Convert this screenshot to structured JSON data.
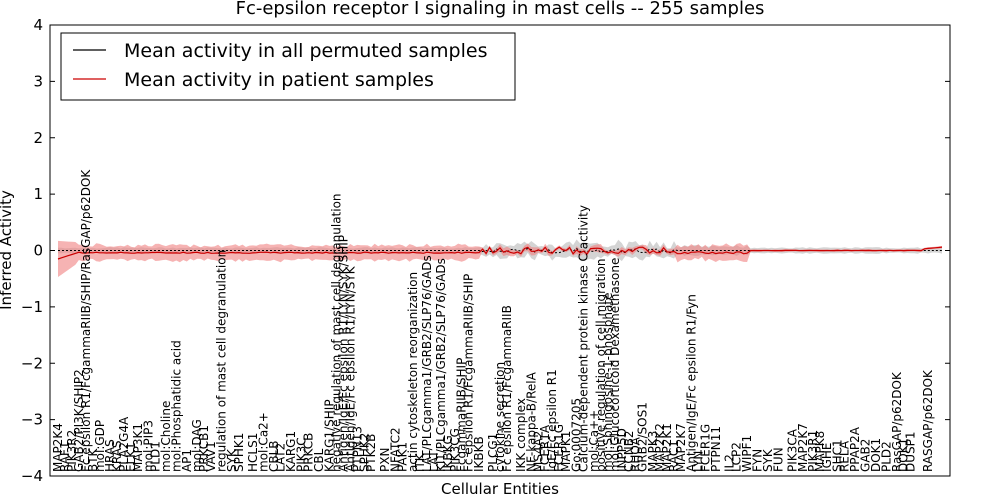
{
  "chart_data": {
    "type": "line",
    "title": "Fc-epsilon receptor I signaling in mast cells -- 255 samples",
    "xlabel": "Cellular Entities",
    "ylabel": "Inferred Activity",
    "ylim": [
      -4,
      4
    ],
    "yticks": [
      -4,
      -3,
      -2,
      -1,
      0,
      1,
      2,
      3,
      4
    ],
    "x_count": 255,
    "grid": false,
    "legend_position": "top-left",
    "legend": [
      {
        "label": "Mean activity in all permuted samples",
        "color": "#000000"
      },
      {
        "label": "Mean activity in patient samples",
        "color": "#cc0000"
      }
    ],
    "colors": {
      "permuted_line": "#000000",
      "permuted_band": "#b0b0b0",
      "patient_line": "#cc0000",
      "patient_band": "#f08080"
    },
    "entities": [
      {
        "label": "MAP2K4",
        "x": 0
      },
      {
        "label": "RAF1",
        "x": 2
      },
      {
        "label": "PIK3R2",
        "x": 4
      },
      {
        "label": "GAB2/PI3K/SHIP2",
        "x": 6
      },
      {
        "label": "Fc epsilon R1/FcgammaRIIB/SHIP/RasGAP/p62DOK",
        "x": 8
      },
      {
        "label": "BTK",
        "x": 10
      },
      {
        "label": "mol:GDP",
        "x": 12
      },
      {
        "label": "HRAS",
        "x": 15
      },
      {
        "label": "KRAS",
        "x": 17
      },
      {
        "label": "PLA2G4A",
        "x": 19
      },
      {
        "label": "ELK1",
        "x": 21
      },
      {
        "label": "MAP3K1",
        "x": 23
      },
      {
        "label": "mol:PIP3",
        "x": 26
      },
      {
        "label": "PLD1",
        "x": 28
      },
      {
        "label": "mol:Choline",
        "x": 31
      },
      {
        "label": "mol:Phosphatidic acid",
        "x": 34
      },
      {
        "label": "AP1",
        "x": 37
      },
      {
        "label": "mol:DAG",
        "x": 40
      },
      {
        "label": "PRKCB1",
        "x": 42
      },
      {
        "label": "VAV1",
        "x": 44
      },
      {
        "label": "regulation of mast cell degranulation",
        "x": 47
      },
      {
        "label": "SYK",
        "x": 50
      },
      {
        "label": "SPHK1",
        "x": 52
      },
      {
        "label": "HCLS1",
        "x": 56
      },
      {
        "label": "mol:Ca2+",
        "x": 59
      },
      {
        "label": "CBLB",
        "x": 62
      },
      {
        "label": "LAT2",
        "x": 64
      },
      {
        "label": "KARG1",
        "x": 67
      },
      {
        "label": "PIK3C",
        "x": 70
      },
      {
        "label": "PRKCB",
        "x": 72
      },
      {
        "label": "CBL",
        "x": 75
      },
      {
        "label": "KARG1/SHIP",
        "x": 78
      },
      {
        "label": "negative regulation of mast cell degranulation",
        "x": 80
      },
      {
        "label": "Antigen/IgE/Fc epsilon R1/LYN/SYK/SHIP",
        "x": 82
      },
      {
        "label": "Antigen/IgE/Fc epsilon R1/LYN/SYK",
        "x": 84
      },
      {
        "label": "PTPN13",
        "x": 86
      },
      {
        "label": "SPHK2",
        "x": 88
      },
      {
        "label": "PTK2B",
        "x": 90
      },
      {
        "label": "PXN",
        "x": 94
      },
      {
        "label": "NFATC2",
        "x": 97
      },
      {
        "label": "PAK1",
        "x": 99
      },
      {
        "label": "actin cytoskeleton reorganization",
        "x": 102
      },
      {
        "label": "ITK",
        "x": 104
      },
      {
        "label": "LAT/PLCgamma1/GRB2/SLP76/GADs",
        "x": 106
      },
      {
        "label": "LAT",
        "x": 108
      },
      {
        "label": "KIT/PLCgamma1/GRB2/SLP76/GADs",
        "x": 110
      },
      {
        "label": "IKBKG",
        "x": 112
      },
      {
        "label": "PIK3CG",
        "x": 114
      },
      {
        "label": "FcgammaRIIB/SHIP",
        "x": 116
      },
      {
        "label": "Fc epsilon R1/FcgammaRIIB/SHIP",
        "x": 118
      },
      {
        "label": "IKBKB",
        "x": 121
      },
      {
        "label": "PLCG1",
        "x": 125
      },
      {
        "label": "cytokine secretion",
        "x": 127
      },
      {
        "label": "Fc epsilon R1/FcgammaRIIB",
        "x": 129
      },
      {
        "label": "IKK complex",
        "x": 133
      },
      {
        "label": "NF-kappa-B/RelA",
        "x": 136
      },
      {
        "label": "MS4A2",
        "x": 138
      },
      {
        "label": "FCER1A",
        "x": 140
      },
      {
        "label": "IgE/Fc epsilon R1",
        "x": 142
      },
      {
        "label": "FCER1G",
        "x": 144
      },
      {
        "label": "MAPK1",
        "x": 146
      },
      {
        "label": "Go:0007205",
        "x": 149
      },
      {
        "label": "Calcium-dependent protein kinase C activity",
        "x": 151
      },
      {
        "label": "mol:Ca++",
        "x": 154
      },
      {
        "label": "positive regulation of cell migration",
        "x": 156
      },
      {
        "label": "mol:Sphingosine-1-phosphate",
        "x": 158
      },
      {
        "label": "mol:Glucocorticoid Dexamethasone",
        "x": 160
      },
      {
        "label": "INPP5D",
        "x": 162
      },
      {
        "label": "CCNB2",
        "x": 164
      },
      {
        "label": "RHOA",
        "x": 166
      },
      {
        "label": "GRB2/SOS1",
        "x": 168
      },
      {
        "label": "MAPK3",
        "x": 171
      },
      {
        "label": "MAP2K2",
        "x": 173
      },
      {
        "label": "MAP2K1",
        "x": 175
      },
      {
        "label": "RAC1",
        "x": 177
      },
      {
        "label": "MAP2K7",
        "x": 179
      },
      {
        "label": "Antigen/IgE/Fc epsilon R1/Fyn",
        "x": 182
      },
      {
        "label": "LYN",
        "x": 184
      },
      {
        "label": "FCER1G",
        "x": 186
      },
      {
        "label": "PTPN11",
        "x": 189
      },
      {
        "label": "IL2",
        "x": 193
      },
      {
        "label": "LCP2",
        "x": 195
      },
      {
        "label": "WIPF1",
        "x": 198
      },
      {
        "label": "FYN",
        "x": 201
      },
      {
        "label": "SYK",
        "x": 204
      },
      {
        "label": "FUN",
        "x": 207
      },
      {
        "label": "PIK3CA",
        "x": 211
      },
      {
        "label": "MAP2K7",
        "x": 214
      },
      {
        "label": "PIK3R1",
        "x": 217
      },
      {
        "label": "MAPK8",
        "x": 219
      },
      {
        "label": "IGHE",
        "x": 221
      },
      {
        "label": "SHC1",
        "x": 224
      },
      {
        "label": "RELA",
        "x": 226
      },
      {
        "label": "PPAP2A",
        "x": 229
      },
      {
        "label": "GAB2",
        "x": 232
      },
      {
        "label": "DOK1",
        "x": 235
      },
      {
        "label": "PLD2",
        "x": 238
      },
      {
        "label": "RasGAP/p62DOK",
        "x": 241
      },
      {
        "label": "DOK1",
        "x": 243
      },
      {
        "label": "DUSP1",
        "x": 245
      },
      {
        "label": "RASGAP/p62DOK",
        "x": 250
      }
    ]
  }
}
